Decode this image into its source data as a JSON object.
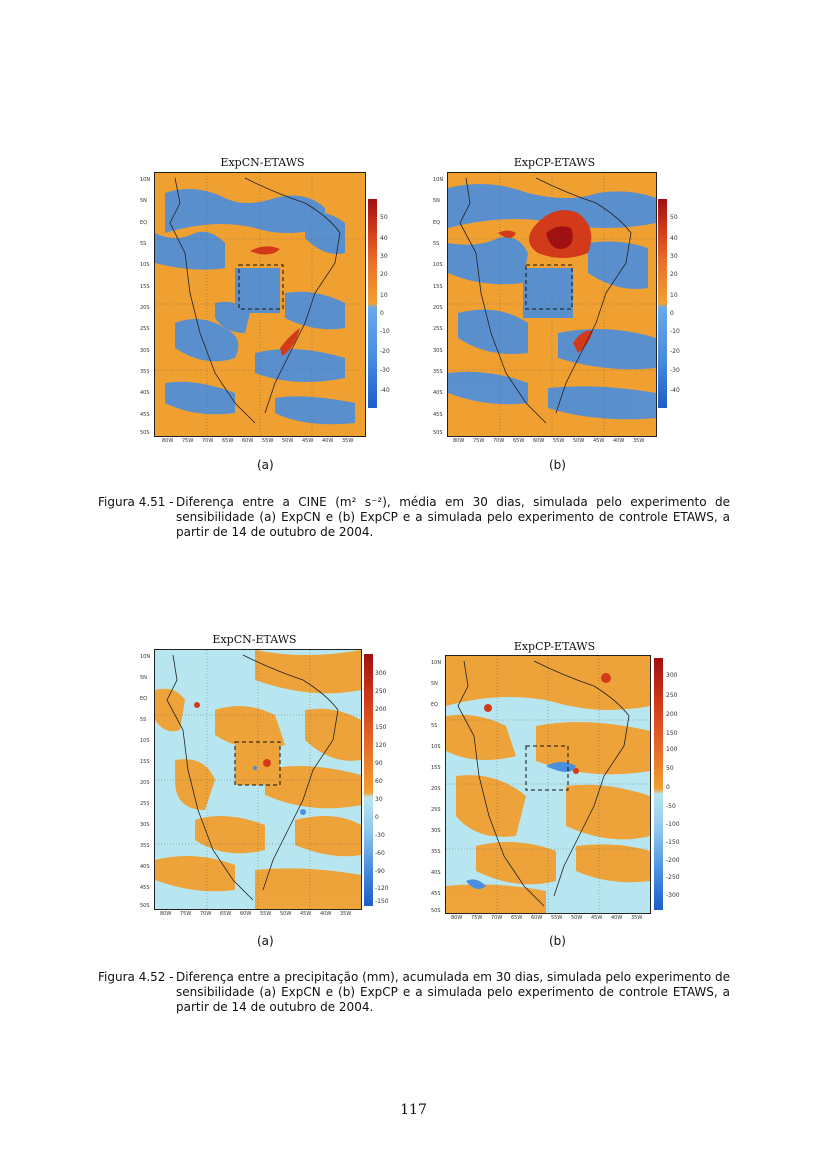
{
  "figures": [
    {
      "panels": [
        {
          "title": "ExpCN-ETAWS",
          "sub": "(a)",
          "lat_labels": [
            "10N",
            "5N",
            "EQ",
            "5S",
            "10S",
            "15S",
            "20S",
            "25S",
            "30S",
            "35S",
            "40S",
            "45S",
            "50S"
          ],
          "lon_labels": [
            "80W",
            "75W",
            "70W",
            "65W",
            "60W",
            "55W",
            "50W",
            "45W",
            "40W",
            "35W"
          ],
          "colorbar_labels": [
            "50",
            "40",
            "30",
            "20",
            "10",
            "0",
            "-10",
            "-20",
            "-30",
            "-40"
          ]
        },
        {
          "title": "ExpCP-ETAWS",
          "sub": "(b)",
          "lat_labels": [
            "10N",
            "5N",
            "EQ",
            "5S",
            "10S",
            "15S",
            "20S",
            "25S",
            "30S",
            "35S",
            "40S",
            "45S",
            "50S"
          ],
          "lon_labels": [
            "80W",
            "75W",
            "70W",
            "65W",
            "60W",
            "55W",
            "50W",
            "45W",
            "40W",
            "35W"
          ],
          "colorbar_labels": [
            "50",
            "40",
            "30",
            "20",
            "10",
            "0",
            "-10",
            "-20",
            "-30",
            "-40"
          ]
        }
      ],
      "caption_label": "Figura 4.51 -",
      "caption_text": "Diferença entre a CINE (m² s⁻²), média em 30 dias, simulada pelo experimento de sensibilidade (a) ExpCN e (b) ExpCP e a simulada pelo experimento de controle ETAWS, a partir de 14 de outubro de 2004."
    },
    {
      "panels": [
        {
          "title": "ExpCN-ETAWS",
          "sub": "(a)",
          "lat_labels": [
            "10N",
            "5N",
            "EQ",
            "5S",
            "10S",
            "15S",
            "20S",
            "25S",
            "30S",
            "35S",
            "40S",
            "45S",
            "50S"
          ],
          "lon_labels": [
            "80W",
            "75W",
            "70W",
            "65W",
            "60W",
            "55W",
            "50W",
            "45W",
            "40W",
            "35W"
          ],
          "colorbar_labels": [
            "300",
            "250",
            "200",
            "150",
            "120",
            "90",
            "60",
            "30",
            "0",
            "-30",
            "-60",
            "-90",
            "-120",
            "-150"
          ]
        },
        {
          "title": "ExpCP-ETAWS",
          "sub": "(b)",
          "lat_labels": [
            "10N",
            "5N",
            "EQ",
            "5S",
            "10S",
            "15S",
            "20S",
            "25S",
            "30S",
            "35S",
            "40S",
            "45S",
            "50S"
          ],
          "lon_labels": [
            "80W",
            "75W",
            "70W",
            "65W",
            "60W",
            "55W",
            "50W",
            "45W",
            "40W",
            "35W"
          ],
          "colorbar_labels": [
            "300",
            "250",
            "200",
            "150",
            "100",
            "50",
            "0",
            "-50",
            "-100",
            "-150",
            "-200",
            "-250",
            "-300"
          ]
        }
      ],
      "caption_label": "Figura 4.52 -",
      "caption_text": "Diferença entre a precipitação (mm), acumulada em 30 dias, simulada pelo experimento de sensibilidade (a) ExpCN e (b) ExpCP e a simulada pelo experimento de controle ETAWS, a partir de 14 de outubro de 2004."
    }
  ],
  "page_number": "117",
  "colors": {
    "orange": "#f0a030",
    "blue": "#4a8ee0",
    "light_blue": "#b8e6f0",
    "red": "#d23a1a"
  }
}
